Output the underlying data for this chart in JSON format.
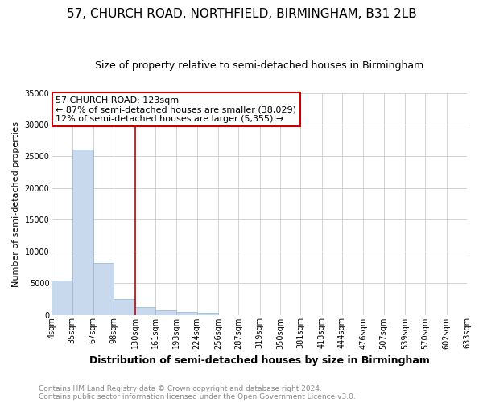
{
  "title": "57, CHURCH ROAD, NORTHFIELD, BIRMINGHAM, B31 2LB",
  "subtitle": "Size of property relative to semi-detached houses in Birmingham",
  "xlabel": "Distribution of semi-detached houses by size in Birmingham",
  "ylabel": "Number of semi-detached properties",
  "footnote1": "Contains HM Land Registry data © Crown copyright and database right 2024.",
  "footnote2": "Contains public sector information licensed under the Open Government Licence v3.0.",
  "annotation_title": "57 CHURCH ROAD: 123sqm",
  "annotation_line1": "← 87% of semi-detached houses are smaller (38,029)",
  "annotation_line2": "12% of semi-detached houses are larger (5,355) →",
  "bin_edges": [
    4,
    35,
    67,
    98,
    130,
    161,
    193,
    224,
    256,
    287,
    319,
    350,
    381,
    413,
    444,
    476,
    507,
    539,
    570,
    602,
    633
  ],
  "bar_heights": [
    5400,
    26100,
    8200,
    2500,
    1200,
    650,
    450,
    300,
    0,
    0,
    0,
    0,
    0,
    0,
    0,
    0,
    0,
    0,
    0,
    0
  ],
  "bar_color": "#c8d9ee",
  "bar_edge_color": "#a0bcd8",
  "vline_color": "#cc0000",
  "vline_x": 130,
  "annotation_box_color": "#ffffff",
  "annotation_box_edge_color": "#cc0000",
  "ylim": [
    0,
    35000
  ],
  "yticks": [
    0,
    5000,
    10000,
    15000,
    20000,
    25000,
    30000,
    35000
  ],
  "grid_color": "#cccccc",
  "background_color": "#ffffff",
  "title_fontsize": 11,
  "subtitle_fontsize": 9,
  "xlabel_fontsize": 9,
  "ylabel_fontsize": 8,
  "tick_fontsize": 7,
  "annotation_fontsize": 8,
  "footnote_fontsize": 6.5
}
